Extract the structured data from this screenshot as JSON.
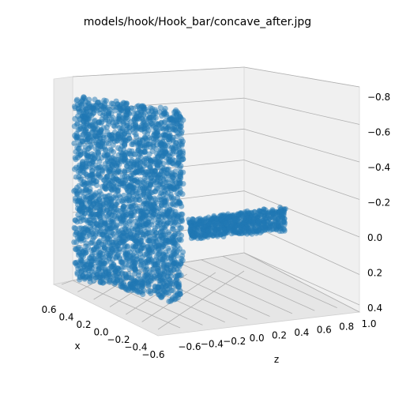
{
  "chart_data": {
    "type": "scatter",
    "projection": "3d",
    "title": "models/hook/Hook_bar/concave_after.jpg",
    "xlabel": "x",
    "ylabel": "z",
    "zlabel": "",
    "x_ticks": [
      "0.6",
      "0.4",
      "0.2",
      "0.0",
      "−0.2",
      "−0.4",
      "−0.6"
    ],
    "z_ticks": [
      "−0.6",
      "−0.4",
      "−0.2",
      "0.0",
      "0.2",
      "0.4",
      "0.6",
      "0.8",
      "1.0"
    ],
    "vertical_ticks": [
      "−0.8",
      "−0.6",
      "−0.4",
      "−0.2",
      "0.0",
      "0.2",
      "0.4"
    ],
    "grid": true,
    "series": [
      {
        "color": "#1f77b4",
        "alpha": 0.5,
        "components": [
          {
            "part": "vertical-plate",
            "x_range": [
              -0.45,
              0.55
            ],
            "z": -0.65,
            "vertical_range": [
              -0.8,
              0.4
            ]
          },
          {
            "part": "horizontal-bar",
            "x": 0.0,
            "z_range": [
              -0.6,
              1.0
            ],
            "vertical_range": [
              -0.2,
              0.05
            ]
          }
        ]
      }
    ]
  }
}
